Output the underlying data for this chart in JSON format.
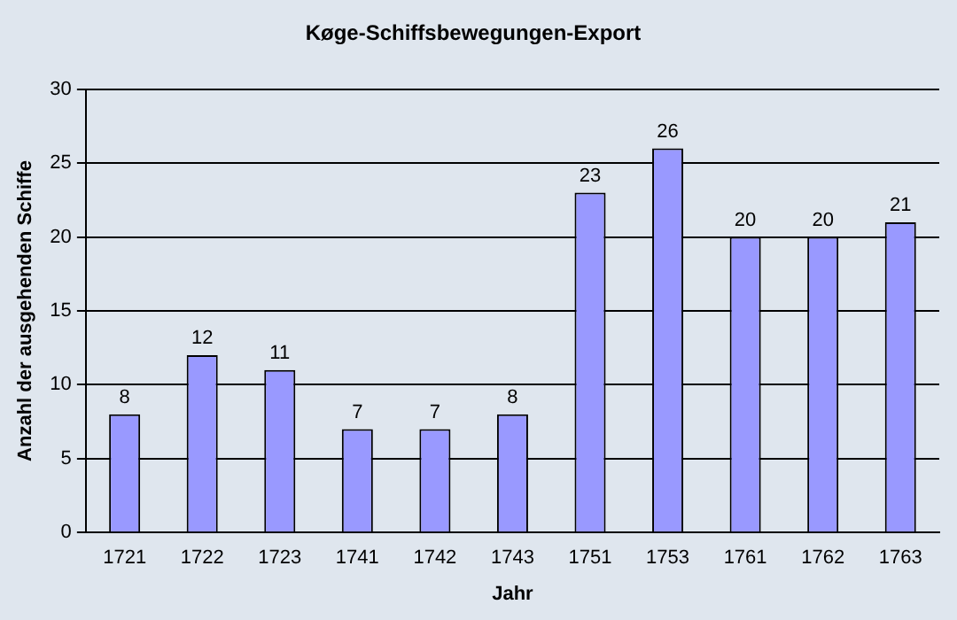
{
  "chart_data": {
    "type": "bar",
    "title": "Køge-Schiffsbewegungen-Export",
    "xlabel": "Jahr",
    "ylabel": "Anzahl der ausgehenden Schiffe",
    "categories": [
      "1721",
      "1722",
      "1723",
      "1741",
      "1742",
      "1743",
      "1751",
      "1753",
      "1761",
      "1762",
      "1763"
    ],
    "values": [
      8,
      12,
      11,
      7,
      7,
      8,
      23,
      26,
      20,
      20,
      21
    ],
    "color": "#9999ff",
    "ylim": [
      0,
      30
    ],
    "yticks": [
      0,
      5,
      10,
      15,
      20,
      25,
      30
    ],
    "grid": "y",
    "data_labels": true,
    "legend": false
  }
}
